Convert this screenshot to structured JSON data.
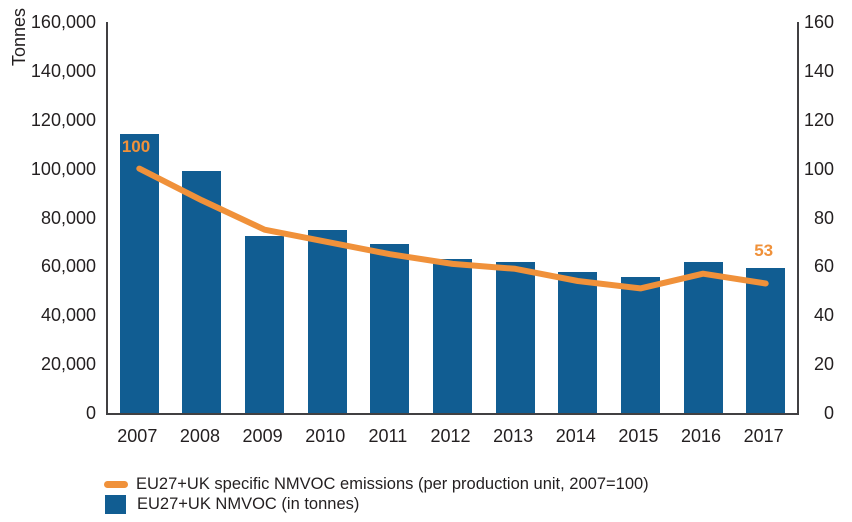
{
  "colors": {
    "bar": "#115d92",
    "line": "#f0913a",
    "axis": "#414042",
    "text": "#231f20",
    "annotation": "#f0913a",
    "background": "#ffffff"
  },
  "chart_data": {
    "type": "bar",
    "subtype": "bar-line-combo",
    "title": "",
    "categories": [
      "2007",
      "2008",
      "2009",
      "2010",
      "2011",
      "2012",
      "2013",
      "2014",
      "2015",
      "2016",
      "2017"
    ],
    "series": [
      {
        "name": "EU27+UK NMVOC (in tonnes)",
        "type": "bar",
        "axis": "left",
        "values": [
          114000,
          99000,
          72500,
          75000,
          69000,
          63000,
          62000,
          57500,
          55500,
          62000,
          59500
        ]
      },
      {
        "name": "EU27+UK specific NMVOC emissions (per production unit, 2007=100)",
        "type": "line",
        "axis": "right",
        "values": [
          100,
          87,
          75,
          70,
          65,
          61,
          59,
          54,
          51,
          57,
          53
        ]
      }
    ],
    "left_axis": {
      "title": "Tonnes",
      "min": 0,
      "max": 160000,
      "tick_step": 20000,
      "tick_labels": [
        "0",
        "20,000",
        "40,000",
        "60,000",
        "80,000",
        "100,000",
        "120,000",
        "140,000",
        "160,000"
      ]
    },
    "right_axis": {
      "title": "",
      "min": 0,
      "max": 160,
      "tick_step": 20,
      "tick_labels": [
        "0",
        "20",
        "40",
        "60",
        "80",
        "100",
        "120",
        "140",
        "160"
      ]
    },
    "annotations": [
      {
        "text": "100",
        "category": "2007",
        "placement": "inside-bar-top"
      },
      {
        "text": "53",
        "category": "2017",
        "placement": "above-line-point"
      }
    ],
    "grid": false,
    "legend_position": "bottom-left"
  },
  "legend": {
    "items": [
      {
        "label": "EU27+UK specific NMVOC emissions (per production unit, 2007=100)",
        "swatch": "line",
        "color": "#f0913a"
      },
      {
        "label": "EU27+UK NMVOC (in tonnes)",
        "swatch": "square",
        "color": "#115d92"
      }
    ]
  }
}
